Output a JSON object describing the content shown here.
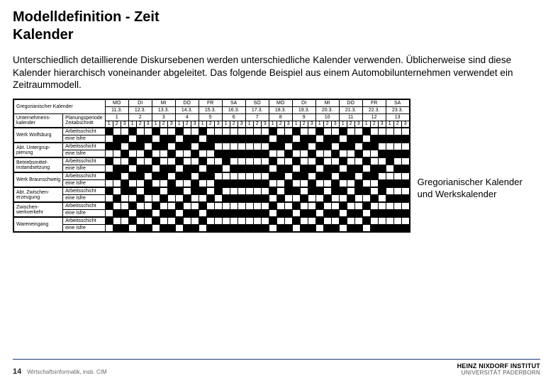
{
  "title_line1": "Modelldefinition - Zeit",
  "title_line2": "Kalender",
  "paragraph": "Unterschiedlich detaillierende Diskursebenen werden unterschiedliche Kalender verwenden. Üblicherweise sind diese Kalender hierarchisch voneinander abgeleitet. Das folgende Beispiel aus einem Automobilunternehmen verwendet ein Zeitraummodell.",
  "caption": "Gregorianischer Kalender und Werkskalender",
  "page_number": "14",
  "footer_text": "Wirtschaftsinformatik, insb. CIM",
  "logo_line1": "HEINZ NIXDORF INSTITUT",
  "logo_line2": "UNIVERSITÄT PADERBORN",
  "calendar": {
    "top_label": "Gregorianischer Kalender",
    "days": [
      "MO",
      "DI",
      "MI",
      "DO",
      "FR",
      "SA",
      "SO",
      "MO",
      "DI",
      "MI",
      "DO",
      "FR",
      "SA"
    ],
    "dates": [
      "11.3.",
      "12.3.",
      "13.3.",
      "14.3.",
      "15.3.",
      "16.3.",
      "17.3.",
      "18.3.",
      "19.3.",
      "20.3.",
      "21.3.",
      "22.3.",
      "23.3."
    ],
    "plan_row_left": "Unternehmens-kalender",
    "plan_row_right": "Planungsperiode Zeitabschnitt",
    "periods": [
      "1",
      "2",
      "3",
      "4",
      "5",
      "6",
      "7",
      "8",
      "9",
      "10",
      "11",
      "12",
      "13"
    ],
    "sub_per_day": 3,
    "groups": [
      {
        "name": "Werk Wolfsburg",
        "rows": [
          {
            "label": "Arbeitsschicht",
            "cells": "kwwkwwkwwkwwkwwwwwwwwkwwkwwkwwkwwkwwwww"
          },
          {
            "label": "eine Isfre",
            "cells": "wkkwkkwkkwkkwkkkkkkkkwkkwkkwkkwkkwkkkkk"
          }
        ]
      },
      {
        "name": "Abt. Untergrup-pierung",
        "rows": [
          {
            "label": "Arbeitsschicht",
            "cells": "kkwkkwkkwkkwkkwwwwwwwkkwkkwkkwkkwkkwwww"
          },
          {
            "label": "eine Isfre",
            "cells": "wwkwwkwwkwwkwwkkkkkkkwwkwwkwwkwwkwwkkkk"
          }
        ]
      },
      {
        "name": "Betriebsmittel-instandsetzung",
        "rows": [
          {
            "label": "Arbeitsschicht",
            "cells": "kwwkwwkwwkwwkwwkwwwwwkwwkwwkwwkwwkwwkww"
          },
          {
            "label": "eine Isfre",
            "cells": "wkkwkkwkkwkkwkkwkkkkkwkkwkkwkkwkkwkkwkk"
          }
        ]
      },
      {
        "name": "Werk Braunschweig",
        "rows": [
          {
            "label": "Arbeitsschicht",
            "cells": "kkwkkwkkwkkwkkwwwwwwwkkwkkwkkwkkwkkwwww"
          },
          {
            "label": "eine Isfre",
            "cells": "wwkwwkwwkwwkwwkkkkkkkwwkwwkwwkwwkwwkkkk"
          }
        ]
      },
      {
        "name": "Abt. Zwischen-erzeugung",
        "rows": [
          {
            "label": "Arbeitsschicht",
            "cells": "kwkkwkkwkkwkkwkwwwwwwkwkkwkkwkkwkkwkwww"
          },
          {
            "label": "eine Isfre",
            "cells": "wkwwkwwkwwkwwkwkkkkkkwkwwkwwkwwkwwkwkkk"
          }
        ]
      },
      {
        "name": "Zwischen-werkverkehr",
        "rows": [
          {
            "label": "Arbeitsschicht",
            "cells": "kwwkwwkwwkwwkwwwwwwwwkwwkwwkwwkwwkwwwww"
          },
          {
            "label": "eine Isfre",
            "cells": "wkkwkkwkkwkkwkkkkkkkkwkkwkkwkkwkkwkkkkk"
          }
        ]
      },
      {
        "name": "Wareneingang",
        "rows": [
          {
            "label": "Arbeitsschicht",
            "cells": "kwwkwwkwwkwwkwwwwwwwwkwwkwwkwwkwwkwwwww"
          },
          {
            "label": "eine Isfre",
            "cells": "wkkwkkwkkwkkwkkkkkkkkwkkwkkwkkwkkwkkkkk"
          }
        ]
      }
    ]
  }
}
